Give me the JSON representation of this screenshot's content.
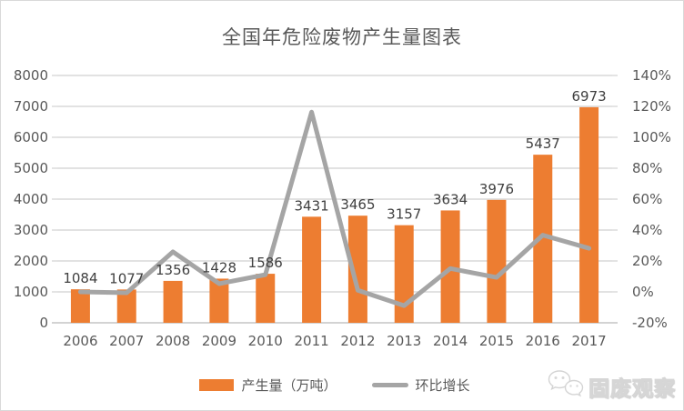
{
  "title": "全国年危险废物产生量图表",
  "legend": {
    "items": [
      {
        "label": "产生量（万吨）",
        "marker": "bar-swatch",
        "color": "#ED7D31"
      },
      {
        "label": "环比增长",
        "marker": "line-swatch",
        "color": "#A5A5A5"
      }
    ]
  },
  "watermark": {
    "icon": "wechat-icon",
    "text": "固废观察"
  },
  "chart_data": {
    "type": "bar",
    "subtype": "bar+line combo, dual axis",
    "title": "全国年危险废物产生量图表",
    "categories": [
      "2006",
      "2007",
      "2008",
      "2009",
      "2010",
      "2011",
      "2012",
      "2013",
      "2014",
      "2015",
      "2016",
      "2017"
    ],
    "series": [
      {
        "name": "产生量（万吨）",
        "type": "bar",
        "axis": "left",
        "color": "#ED7D31",
        "values": [
          1084,
          1077,
          1356,
          1428,
          1586,
          3431,
          3465,
          3157,
          3634,
          3976,
          5437,
          6973
        ],
        "data_labels": true
      },
      {
        "name": "环比增长",
        "type": "line",
        "axis": "right",
        "color": "#A5A5A5",
        "unit": "%",
        "values": [
          0,
          -0.6,
          25.9,
          5.3,
          11.1,
          116.3,
          1.0,
          -8.9,
          15.1,
          9.4,
          36.7,
          28.2
        ],
        "data_labels": false
      }
    ],
    "left_axis": {
      "min": 0,
      "max": 8000,
      "step": 1000,
      "tick_labels": [
        "0",
        "1000",
        "2000",
        "3000",
        "4000",
        "5000",
        "6000",
        "7000",
        "8000"
      ]
    },
    "right_axis": {
      "min": -20,
      "max": 140,
      "step": 20,
      "suffix": "%",
      "tick_labels": [
        "-20%",
        "0%",
        "20%",
        "40%",
        "60%",
        "80%",
        "100%",
        "120%",
        "140%"
      ]
    },
    "grid": true,
    "gridline_color": "#D9D9D9",
    "baseline_color": "#D3D3D3",
    "axis_label_color": "#595959",
    "bar_label_color": "#404040",
    "legend_position": "bottom"
  }
}
